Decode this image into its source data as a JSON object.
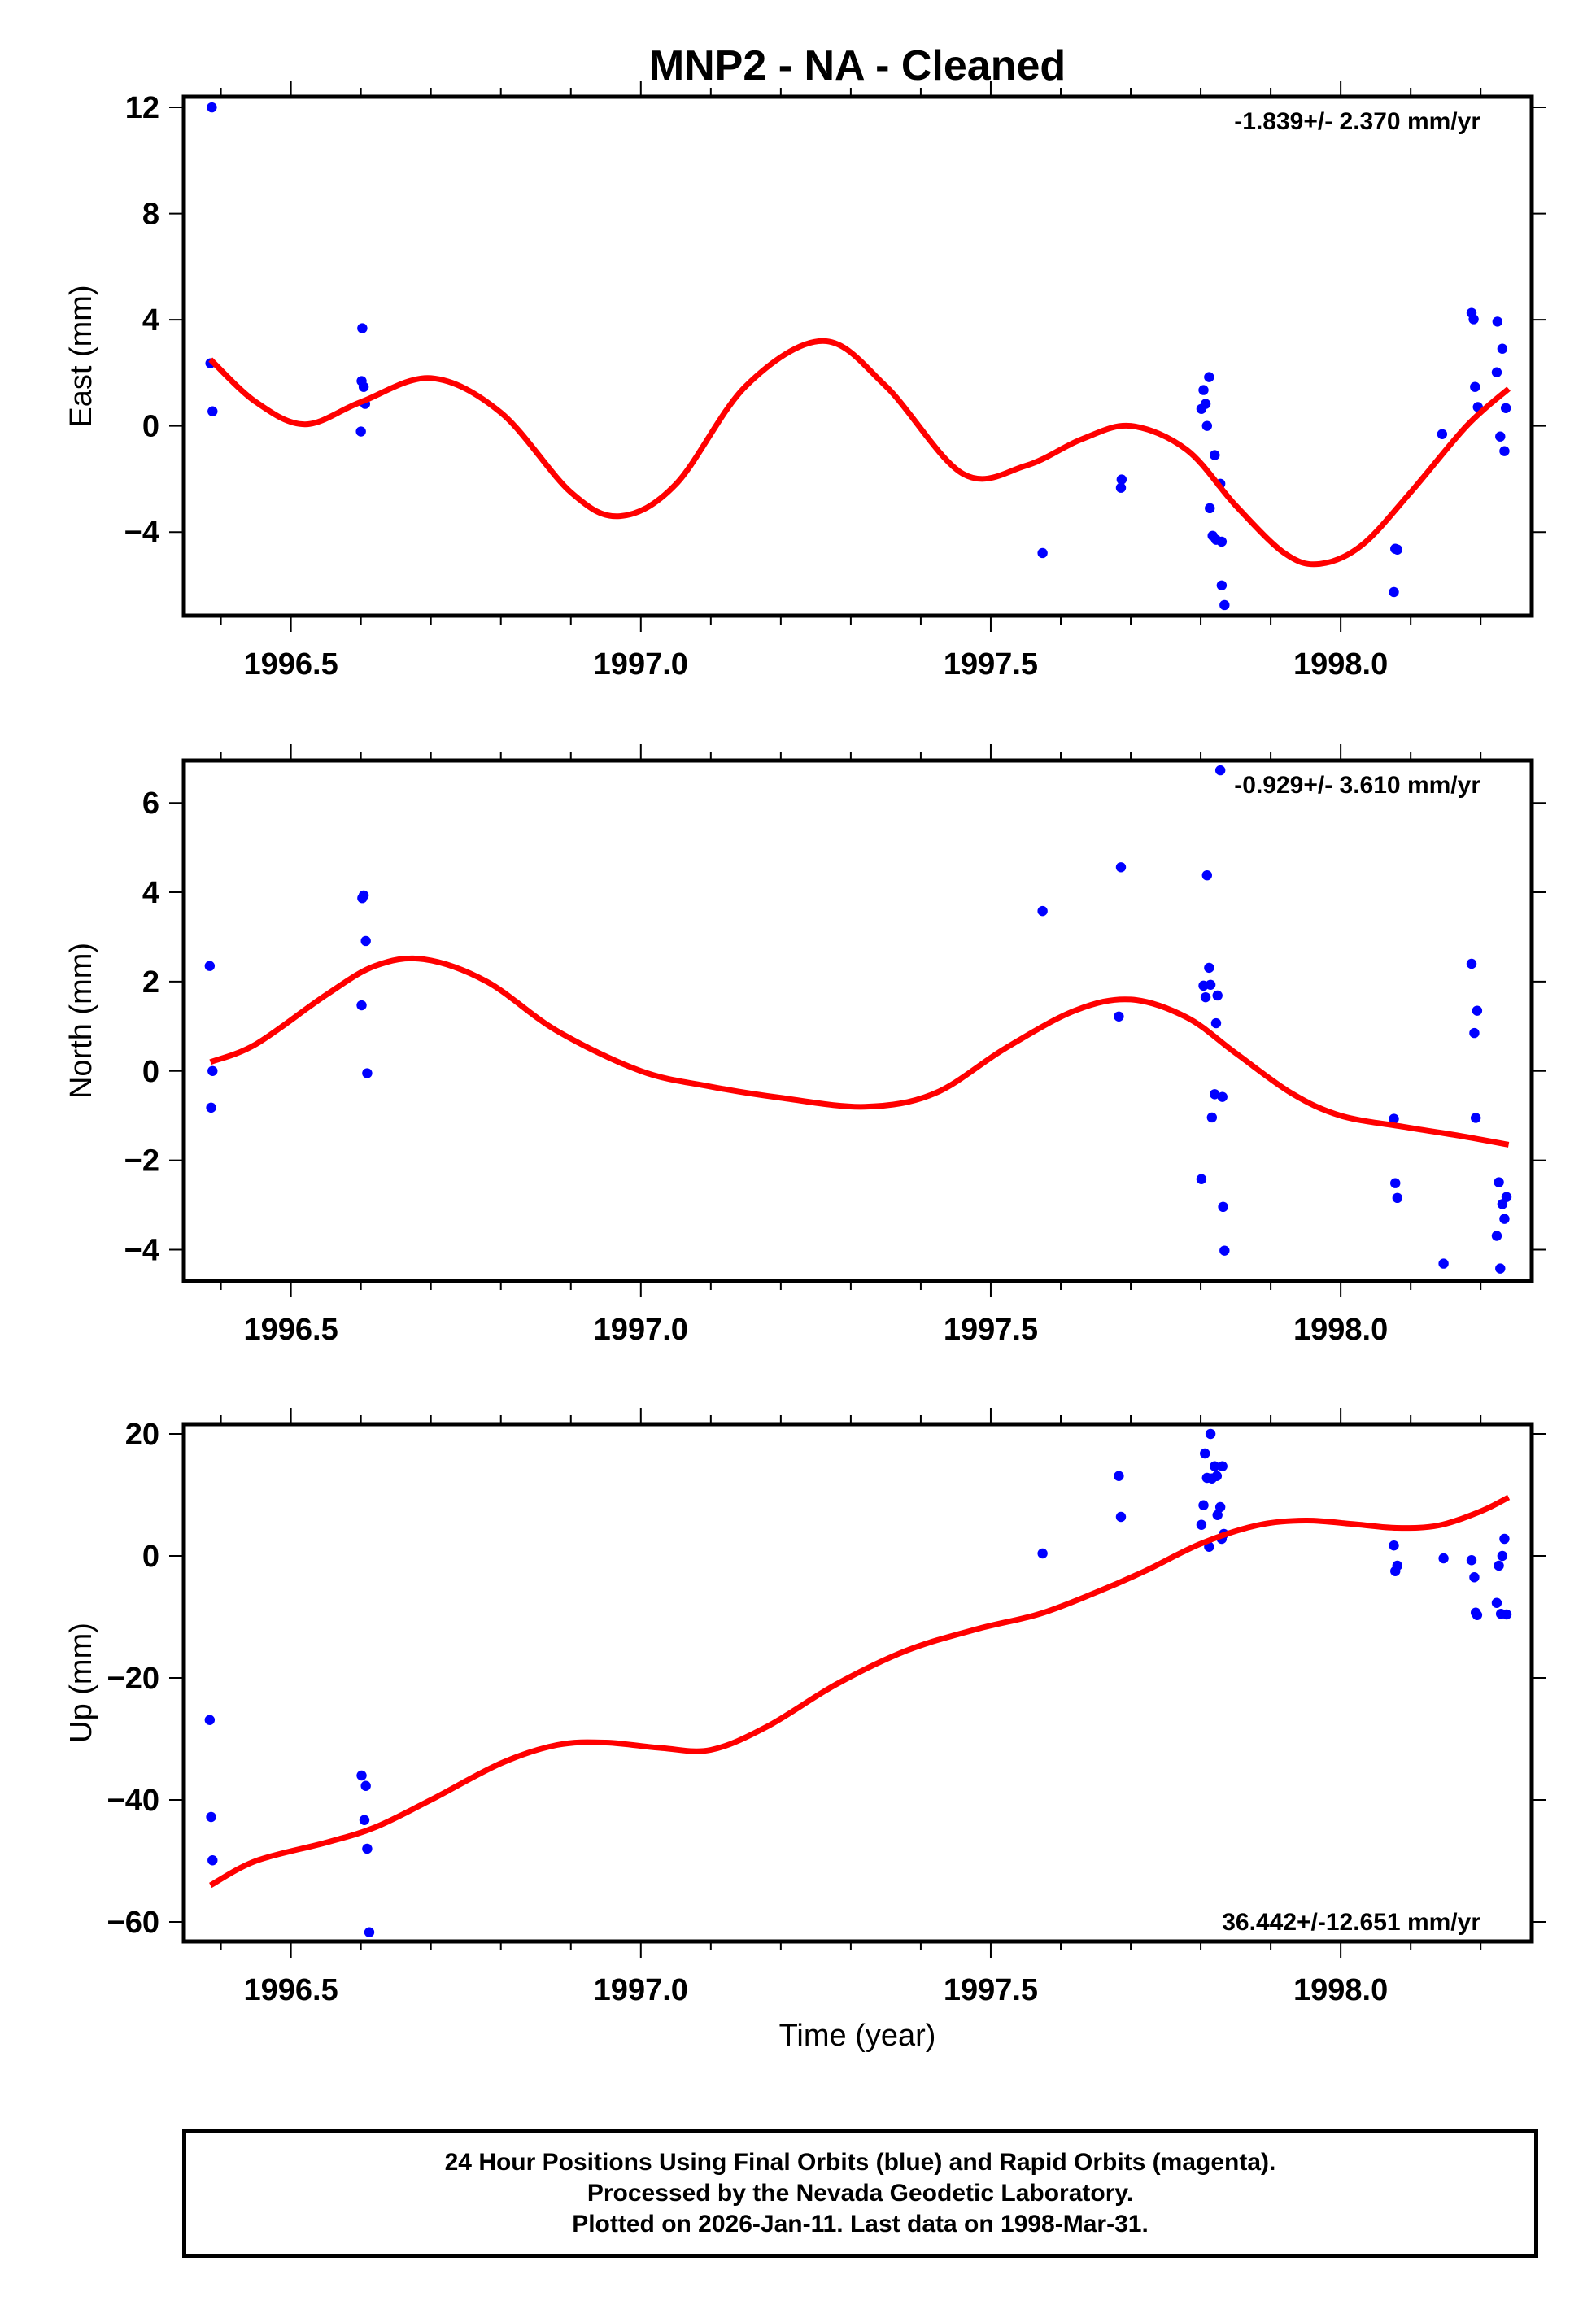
{
  "title": "MNP2  - NA - Cleaned",
  "xlabel": "Time (year)",
  "footer": {
    "line1": "24 Hour Positions Using Final Orbits (blue) and Rapid Orbits (magenta).",
    "line2": "Processed by the Nevada Geodetic Laboratory.",
    "line3": "Plotted on 2026-Jan-11. Last data on 1998-Mar-31."
  },
  "colors": {
    "final_orbits": "#0000ff",
    "rapid_orbits": "#ff00ff",
    "model": "#ff0000",
    "frame": "#000000"
  },
  "chart_data": [
    {
      "type": "scatter",
      "name": "east",
      "ylabel": "East (mm)",
      "rate_label": "-1.839+/- 2.370 mm/yr",
      "rate_position": "top-right",
      "xlim": [
        1996.347,
        1998.273
      ],
      "ylim": [
        -7.15,
        12.4
      ],
      "xticks": [
        1996.5,
        1997.0,
        1997.5,
        1998.0
      ],
      "xtick_labels": [
        "1996.5",
        "1997.0",
        "1997.5",
        "1998.0"
      ],
      "yticks": [
        -4,
        0,
        4,
        8,
        12
      ],
      "ytick_labels": [
        "−4",
        "0",
        "4",
        "8",
        "12"
      ],
      "grid": false,
      "points": [
        [
          1996.387,
          12.0
        ],
        [
          1996.385,
          2.36
        ],
        [
          1996.388,
          0.55
        ],
        [
          1996.602,
          3.68
        ],
        [
          1996.601,
          1.69
        ],
        [
          1996.604,
          1.47
        ],
        [
          1996.606,
          0.83
        ],
        [
          1996.6,
          -0.21
        ],
        [
          1997.574,
          -4.79
        ],
        [
          1997.686,
          -2.33
        ],
        [
          1997.687,
          -2.02
        ],
        [
          1997.812,
          1.84
        ],
        [
          1997.804,
          1.35
        ],
        [
          1997.807,
          0.83
        ],
        [
          1997.801,
          0.64
        ],
        [
          1997.809,
          0.0
        ],
        [
          1997.82,
          -1.1
        ],
        [
          1997.828,
          -2.18
        ],
        [
          1997.813,
          -3.1
        ],
        [
          1997.817,
          -4.14
        ],
        [
          1997.822,
          -4.29
        ],
        [
          1997.83,
          -4.36
        ],
        [
          1997.83,
          -6.01
        ],
        [
          1997.834,
          -6.75
        ],
        [
          1998.078,
          -4.63
        ],
        [
          1998.081,
          -4.66
        ],
        [
          1998.076,
          -6.26
        ],
        [
          1998.145,
          -0.31
        ],
        [
          1998.187,
          4.26
        ],
        [
          1998.19,
          4.02
        ],
        [
          1998.192,
          1.47
        ],
        [
          1998.196,
          0.71
        ],
        [
          1998.224,
          3.93
        ],
        [
          1998.231,
          2.91
        ],
        [
          1998.223,
          2.02
        ],
        [
          1998.236,
          0.67
        ],
        [
          1998.228,
          -0.4
        ],
        [
          1998.234,
          -0.95
        ]
      ],
      "model": [
        [
          1996.385,
          2.5
        ],
        [
          1996.45,
          0.9
        ],
        [
          1996.52,
          0.06
        ],
        [
          1996.6,
          0.9
        ],
        [
          1996.7,
          1.8
        ],
        [
          1996.8,
          0.5
        ],
        [
          1996.9,
          -2.5
        ],
        [
          1996.97,
          -3.4
        ],
        [
          1997.05,
          -2.2
        ],
        [
          1997.15,
          1.5
        ],
        [
          1997.26,
          3.2
        ],
        [
          1997.35,
          1.5
        ],
        [
          1997.46,
          -1.8
        ],
        [
          1997.55,
          -1.5
        ],
        [
          1997.63,
          -0.5
        ],
        [
          1997.7,
          0.0
        ],
        [
          1997.78,
          -0.9
        ],
        [
          1997.85,
          -3.0
        ],
        [
          1997.92,
          -4.8
        ],
        [
          1997.97,
          -5.2
        ],
        [
          1998.03,
          -4.5
        ],
        [
          1998.1,
          -2.5
        ],
        [
          1998.18,
          0.0
        ],
        [
          1998.24,
          1.4
        ]
      ]
    },
    {
      "type": "scatter",
      "name": "north",
      "ylabel": "North (mm)",
      "rate_label": "-0.929+/- 3.610 mm/yr",
      "rate_position": "top-right",
      "xlim": [
        1996.347,
        1998.273
      ],
      "ylim": [
        -4.7,
        6.95
      ],
      "xticks": [
        1996.5,
        1997.0,
        1997.5,
        1998.0
      ],
      "xtick_labels": [
        "1996.5",
        "1997.0",
        "1997.5",
        "1998.0"
      ],
      "yticks": [
        -4,
        -2,
        0,
        2,
        4,
        6
      ],
      "ytick_labels": [
        "−4",
        "−2",
        "0",
        "2",
        "4",
        "6"
      ],
      "grid": false,
      "points": [
        [
          1996.384,
          2.35
        ],
        [
          1996.388,
          0.0
        ],
        [
          1996.386,
          -0.82
        ],
        [
          1996.604,
          3.93
        ],
        [
          1996.602,
          3.87
        ],
        [
          1996.607,
          2.91
        ],
        [
          1996.601,
          1.47
        ],
        [
          1996.609,
          -0.05
        ],
        [
          1997.574,
          3.58
        ],
        [
          1997.686,
          4.56
        ],
        [
          1997.683,
          1.22
        ],
        [
          1997.828,
          6.73
        ],
        [
          1997.809,
          4.38
        ],
        [
          1997.812,
          2.31
        ],
        [
          1997.804,
          1.91
        ],
        [
          1997.814,
          1.93
        ],
        [
          1997.807,
          1.65
        ],
        [
          1997.824,
          1.69
        ],
        [
          1997.822,
          1.07
        ],
        [
          1997.82,
          -0.52
        ],
        [
          1997.831,
          -0.58
        ],
        [
          1997.816,
          -1.04
        ],
        [
          1997.801,
          -2.42
        ],
        [
          1997.832,
          -3.04
        ],
        [
          1997.834,
          -4.02
        ],
        [
          1998.076,
          -1.07
        ],
        [
          1998.078,
          -2.51
        ],
        [
          1998.081,
          -2.84
        ],
        [
          1998.147,
          -4.31
        ],
        [
          1998.187,
          2.4
        ],
        [
          1998.195,
          1.35
        ],
        [
          1998.191,
          0.85
        ],
        [
          1998.193,
          -1.05
        ],
        [
          1998.226,
          -2.49
        ],
        [
          1998.237,
          -2.82
        ],
        [
          1998.231,
          -2.98
        ],
        [
          1998.234,
          -3.31
        ],
        [
          1998.223,
          -3.69
        ],
        [
          1998.228,
          -4.42
        ]
      ],
      "model": [
        [
          1996.385,
          0.2
        ],
        [
          1996.45,
          0.6
        ],
        [
          1996.55,
          1.7
        ],
        [
          1996.62,
          2.35
        ],
        [
          1996.69,
          2.5
        ],
        [
          1996.78,
          2.0
        ],
        [
          1996.88,
          0.9
        ],
        [
          1997.0,
          0.0
        ],
        [
          1997.1,
          -0.35
        ],
        [
          1997.2,
          -0.6
        ],
        [
          1997.32,
          -0.8
        ],
        [
          1997.42,
          -0.5
        ],
        [
          1997.52,
          0.5
        ],
        [
          1997.62,
          1.35
        ],
        [
          1997.7,
          1.6
        ],
        [
          1997.78,
          1.2
        ],
        [
          1997.85,
          0.4
        ],
        [
          1997.93,
          -0.5
        ],
        [
          1998.0,
          -1.0
        ],
        [
          1998.09,
          -1.25
        ],
        [
          1998.17,
          -1.45
        ],
        [
          1998.24,
          -1.65
        ]
      ]
    },
    {
      "type": "scatter",
      "name": "up",
      "ylabel": "Up (mm)",
      "rate_label": "36.442+/-12.651 mm/yr",
      "rate_position": "bottom-right",
      "xlim": [
        1996.347,
        1998.273
      ],
      "ylim": [
        -63.2,
        21.6
      ],
      "xticks": [
        1996.5,
        1997.0,
        1997.5,
        1998.0
      ],
      "xtick_labels": [
        "1996.5",
        "1997.0",
        "1997.5",
        "1998.0"
      ],
      "yticks": [
        -60,
        -40,
        -20,
        0,
        20
      ],
      "ytick_labels": [
        "−60",
        "−40",
        "−20",
        "0",
        "20"
      ],
      "grid": false,
      "points": [
        [
          1996.384,
          -26.9
        ],
        [
          1996.386,
          -42.8
        ],
        [
          1996.388,
          -49.9
        ],
        [
          1996.601,
          -36.0
        ],
        [
          1996.607,
          -37.7
        ],
        [
          1996.605,
          -43.3
        ],
        [
          1996.609,
          -48.0
        ],
        [
          1996.612,
          -61.7
        ],
        [
          1997.574,
          0.4
        ],
        [
          1997.683,
          13.1
        ],
        [
          1997.686,
          6.4
        ],
        [
          1997.814,
          20.0
        ],
        [
          1997.806,
          16.8
        ],
        [
          1997.82,
          14.7
        ],
        [
          1997.831,
          14.7
        ],
        [
          1997.809,
          12.8
        ],
        [
          1997.816,
          12.7
        ],
        [
          1997.823,
          13.1
        ],
        [
          1997.804,
          8.3
        ],
        [
          1997.828,
          8.0
        ],
        [
          1997.824,
          6.7
        ],
        [
          1997.801,
          5.1
        ],
        [
          1997.833,
          3.6
        ],
        [
          1997.83,
          2.8
        ],
        [
          1997.812,
          1.5
        ],
        [
          1998.076,
          1.7
        ],
        [
          1998.081,
          -1.6
        ],
        [
          1998.078,
          -2.5
        ],
        [
          1998.147,
          -0.4
        ],
        [
          1998.187,
          -0.7
        ],
        [
          1998.191,
          -3.5
        ],
        [
          1998.193,
          -9.3
        ],
        [
          1998.195,
          -9.7
        ],
        [
          1998.234,
          2.8
        ],
        [
          1998.231,
          0.0
        ],
        [
          1998.226,
          -1.6
        ],
        [
          1998.223,
          -7.7
        ],
        [
          1998.229,
          -9.5
        ],
        [
          1998.237,
          -9.6
        ]
      ],
      "model": [
        [
          1996.385,
          -54.0
        ],
        [
          1996.45,
          -50.0
        ],
        [
          1996.55,
          -47.0
        ],
        [
          1996.62,
          -44.5
        ],
        [
          1996.7,
          -40.0
        ],
        [
          1996.8,
          -34.0
        ],
        [
          1996.88,
          -31.0
        ],
        [
          1996.95,
          -30.6
        ],
        [
          1997.03,
          -31.5
        ],
        [
          1997.1,
          -31.8
        ],
        [
          1997.18,
          -28.0
        ],
        [
          1997.28,
          -21.0
        ],
        [
          1997.38,
          -15.5
        ],
        [
          1997.48,
          -12.0
        ],
        [
          1997.57,
          -9.5
        ],
        [
          1997.65,
          -6.0
        ],
        [
          1997.72,
          -2.5
        ],
        [
          1997.8,
          2.0
        ],
        [
          1997.88,
          5.0
        ],
        [
          1997.95,
          5.8
        ],
        [
          1998.02,
          5.2
        ],
        [
          1998.08,
          4.6
        ],
        [
          1998.14,
          5.0
        ],
        [
          1998.2,
          7.3
        ],
        [
          1998.24,
          9.6
        ]
      ]
    }
  ]
}
